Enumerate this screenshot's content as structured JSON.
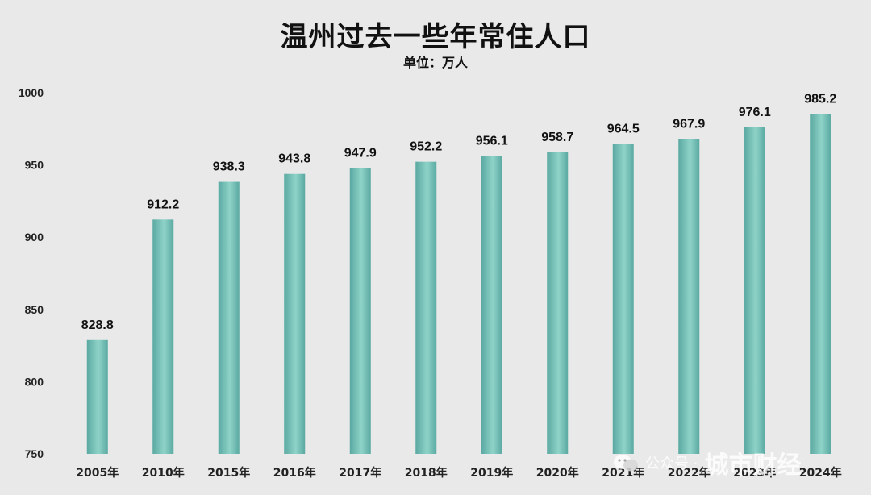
{
  "chart_data": {
    "type": "bar",
    "title": "温州过去一些年常住人口",
    "subtitle": "单位：万人",
    "categories": [
      "2005年",
      "2010年",
      "2015年",
      "2016年",
      "2017年",
      "2018年",
      "2019年",
      "2020年",
      "2021年",
      "2022年",
      "2023年",
      "2024年"
    ],
    "values": [
      828.8,
      912.2,
      938.3,
      943.8,
      947.9,
      952.2,
      956.1,
      958.7,
      964.5,
      967.9,
      976.1,
      985.2
    ],
    "value_labels": [
      "828.8",
      "912.2",
      "938.3",
      "943.8",
      "947.9",
      "952.2",
      "956.1",
      "958.7",
      "964.5",
      "967.9",
      "976.1",
      "985.2"
    ],
    "ylim": [
      750,
      1000
    ],
    "yticks": [
      750,
      800,
      850,
      900,
      950,
      1000
    ],
    "grid": false,
    "bar_color": "#8fd3c8",
    "bar_color_dark": "#5aa9a2"
  },
  "watermark": {
    "icon": "wechat-icon",
    "label": "公众号 ·",
    "name": "城市财经"
  }
}
